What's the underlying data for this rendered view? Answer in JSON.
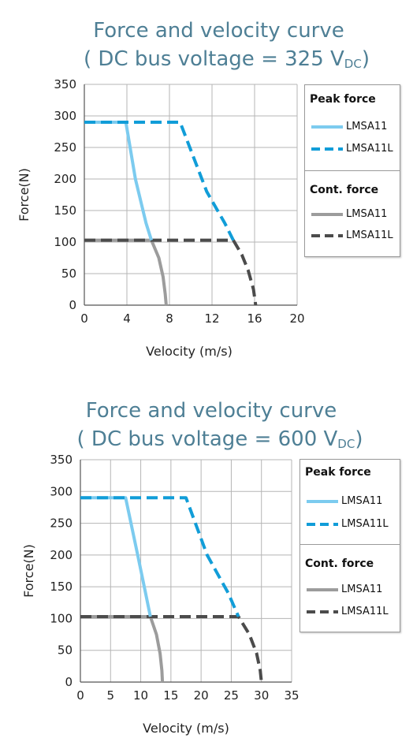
{
  "colors": {
    "peak_lmsa11": "#7ccbef",
    "peak_lmsa11l": "#119dd8",
    "cont_lmsa11": "#9c9c9c",
    "cont_lmsa11l": "#4b4b4b",
    "title": "#4e7f95",
    "grid": "#b5b5b5"
  },
  "legend": {
    "peak_title": "Peak force",
    "cont_title": "Cont. force",
    "lmsa11": "LMSA11",
    "lmsa11l": "LMSA11L"
  },
  "chart_data": [
    {
      "type": "line",
      "title": "Force and velocity curve",
      "subtitle_prefix": "( DC bus voltage = 325 V",
      "subtitle_sub": "DC",
      "subtitle_suffix": ")",
      "xlabel": "Velocity (m/s)",
      "ylabel": "Force(N)",
      "xlim": [
        0,
        20
      ],
      "ylim": [
        0,
        350
      ],
      "xticks": [
        0,
        4,
        8,
        12,
        16,
        20
      ],
      "yticks": [
        0,
        50,
        100,
        150,
        200,
        250,
        300,
        350
      ],
      "grid": true,
      "legend_position": "right",
      "series": [
        {
          "name": "LMSA11",
          "group": "Peak force",
          "style": "solid",
          "x": [
            0,
            3.9,
            4.8,
            5.8,
            6.3
          ],
          "y": [
            290,
            290,
            200,
            130,
            103
          ]
        },
        {
          "name": "LMSA11L",
          "group": "Peak force",
          "style": "dashed",
          "x": [
            0,
            9.0,
            11.5,
            13.2,
            14.0
          ],
          "y": [
            290,
            290,
            180,
            130,
            103
          ]
        },
        {
          "name": "LMSA11",
          "group": "Cont. force",
          "style": "solid",
          "x": [
            0,
            6.3,
            7.0,
            7.4,
            7.6,
            7.7
          ],
          "y": [
            103,
            103,
            75,
            45,
            18,
            0
          ]
        },
        {
          "name": "LMSA11L",
          "group": "Cont. force",
          "style": "dashed",
          "x": [
            0,
            14.0,
            14.8,
            15.4,
            15.9,
            16.1
          ],
          "y": [
            103,
            103,
            80,
            55,
            25,
            0
          ]
        }
      ]
    },
    {
      "type": "line",
      "title": "Force and velocity curve",
      "subtitle_prefix": "( DC bus voltage = 600 V",
      "subtitle_sub": "DC",
      "subtitle_suffix": ")",
      "xlabel": "Velocity (m/s)",
      "ylabel": "Force(N)",
      "xlim": [
        0,
        35
      ],
      "ylim": [
        0,
        350
      ],
      "xticks": [
        0,
        5,
        10,
        15,
        20,
        25,
        30,
        35
      ],
      "yticks": [
        0,
        50,
        100,
        150,
        200,
        250,
        300,
        350
      ],
      "grid": true,
      "legend_position": "right",
      "series": [
        {
          "name": "LMSA11",
          "group": "Peak force",
          "style": "solid",
          "x": [
            0,
            7.5,
            9.5,
            10.8,
            11.6
          ],
          "y": [
            290,
            290,
            200,
            140,
            103
          ]
        },
        {
          "name": "LMSA11L",
          "group": "Peak force",
          "style": "dashed",
          "x": [
            0,
            17.5,
            21.0,
            24.5,
            26.2
          ],
          "y": [
            290,
            290,
            200,
            140,
            103
          ]
        },
        {
          "name": "LMSA11",
          "group": "Cont. force",
          "style": "solid",
          "x": [
            0,
            11.6,
            12.6,
            13.2,
            13.5,
            13.6
          ],
          "y": [
            103,
            103,
            75,
            45,
            18,
            0
          ]
        },
        {
          "name": "LMSA11L",
          "group": "Cont. force",
          "style": "dashed",
          "x": [
            0,
            26.2,
            28.0,
            29.2,
            29.8,
            30.0
          ],
          "y": [
            103,
            103,
            75,
            45,
            18,
            0
          ]
        }
      ]
    }
  ]
}
